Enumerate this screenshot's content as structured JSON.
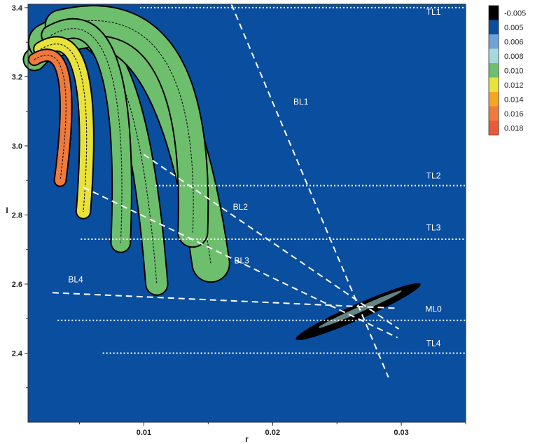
{
  "chart_data": {
    "type": "heatmap",
    "title": "",
    "xlabel": "r",
    "ylabel": "I",
    "xlim": [
      0.001,
      0.035
    ],
    "ylim": [
      2.2,
      3.41
    ],
    "x_ticks": [
      {
        "value": 0.01,
        "label": "0.01"
      },
      {
        "value": 0.02,
        "label": "0.02"
      },
      {
        "value": 0.03,
        "label": "0.03"
      }
    ],
    "y_ticks": [
      {
        "value": 2.4,
        "label": "2.4"
      },
      {
        "value": 2.6,
        "label": "2.6"
      },
      {
        "value": 2.8,
        "label": "2.8"
      },
      {
        "value": 3.0,
        "label": "3.0"
      },
      {
        "value": 3.2,
        "label": "3.2"
      },
      {
        "value": 3.4,
        "label": "3.4"
      }
    ],
    "background_color": "#0a4ea0",
    "colorbar": [
      {
        "label": "-0.005",
        "color": "#000000"
      },
      {
        "label": "0.005",
        "color": "#0a4ea0"
      },
      {
        "label": "0.006",
        "color": "#6fa3d8"
      },
      {
        "label": "0.008",
        "color": "#a6dada"
      },
      {
        "label": "0.010",
        "color": "#6dbf6d"
      },
      {
        "label": "0.012",
        "color": "#e8e23a"
      },
      {
        "label": "0.014",
        "color": "#f6a623"
      },
      {
        "label": "0.016",
        "color": "#f07a3b"
      },
      {
        "label": "0.018",
        "color": "#e85a3a"
      }
    ],
    "horizontal_lines": [
      {
        "name": "TL1",
        "y": 3.4,
        "x_start": 0.0097
      },
      {
        "name": "TL2",
        "y": 2.885,
        "x_start": 0.0109
      },
      {
        "name": "TL3",
        "y": 2.73,
        "x_start": 0.0051
      },
      {
        "name": "ML0",
        "y": 2.495,
        "x_start": 0.0033
      },
      {
        "name": "TL4",
        "y": 2.4,
        "x_start": 0.0068
      }
    ],
    "beam_lines": [
      {
        "name": "BL1",
        "from": [
          0.0168,
          3.41
        ],
        "to": [
          0.029,
          2.33
        ]
      },
      {
        "name": "BL2",
        "from": [
          0.01,
          2.975
        ],
        "to": [
          0.0298,
          2.47
        ]
      },
      {
        "name": "BL3",
        "from": [
          0.0053,
          2.88
        ],
        "to": [
          0.0297,
          2.445
        ]
      },
      {
        "name": "BL4",
        "from": [
          0.0029,
          2.575
        ],
        "to": [
          0.0296,
          2.53
        ]
      }
    ],
    "line_labels": [
      {
        "text": "TL1",
        "x": 0.0325,
        "y": 3.38
      },
      {
        "text": "BL1",
        "x": 0.0222,
        "y": 3.12
      },
      {
        "text": "TL2",
        "x": 0.0325,
        "y": 2.905
      },
      {
        "text": "BL2",
        "x": 0.0175,
        "y": 2.815
      },
      {
        "text": "TL3",
        "x": 0.0325,
        "y": 2.755
      },
      {
        "text": "BL3",
        "x": 0.0176,
        "y": 2.66
      },
      {
        "text": "BL4",
        "x": 0.0047,
        "y": 2.605
      },
      {
        "text": "ML0",
        "x": 0.0325,
        "y": 2.52
      },
      {
        "text": "TL4",
        "x": 0.0325,
        "y": 2.42
      }
    ],
    "arcs": [
      {
        "start": [
          0.0015,
          3.25
        ],
        "control": [
          0.009,
          3.55
        ],
        "end": [
          0.011,
          2.6
        ],
        "width": 0.0016,
        "color": "#6dbf6d"
      },
      {
        "start": [
          0.0025,
          3.3
        ],
        "control": [
          0.012,
          3.5
        ],
        "end": [
          0.0152,
          2.66
        ],
        "width": 0.0028,
        "color": "#6dbf6d"
      },
      {
        "start": [
          0.0035,
          3.35
        ],
        "control": [
          0.0145,
          3.45
        ],
        "end": [
          0.0138,
          2.75
        ],
        "width": 0.0022,
        "color": "#6dbf6d"
      },
      {
        "start": [
          0.0028,
          3.32
        ],
        "control": [
          0.009,
          3.45
        ],
        "end": [
          0.0082,
          2.72
        ],
        "width": 0.0014,
        "color": "#6dbf6d"
      },
      {
        "start": [
          0.002,
          3.28
        ],
        "control": [
          0.0065,
          3.38
        ],
        "end": [
          0.0053,
          2.81
        ],
        "width": 0.001,
        "color": "#e8e23a"
      },
      {
        "start": [
          0.0015,
          3.25
        ],
        "control": [
          0.005,
          3.33
        ],
        "end": [
          0.0035,
          2.9
        ],
        "width": 0.0008,
        "color": "#f07a3b"
      }
    ],
    "cluster": {
      "start": [
        0.0218,
        2.44
      ],
      "end": [
        0.0315,
        2.6
      ],
      "width": 0.03,
      "color": "#000000"
    }
  }
}
